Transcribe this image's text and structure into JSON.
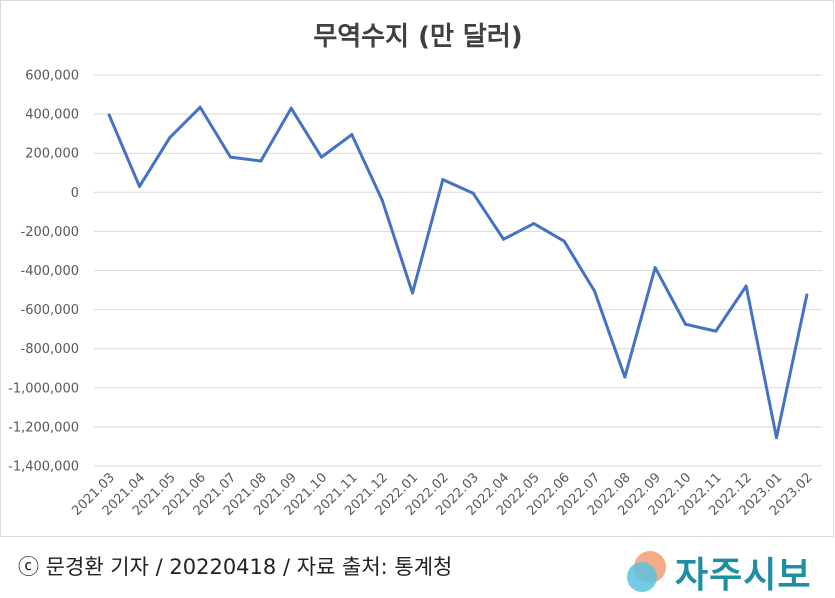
{
  "chart_data": {
    "type": "line",
    "title": "무역수지 (만 달러)",
    "xlabel": "",
    "ylabel": "",
    "categories": [
      "2021.03",
      "2021.04",
      "2021.05",
      "2021.06",
      "2021.07",
      "2021.08",
      "2021.09",
      "2021.10",
      "2021.11",
      "2021.12",
      "2022.01",
      "2022.02",
      "2022.03",
      "2022.04",
      "2022.05",
      "2022.06",
      "2022.07",
      "2022.08",
      "2022.09",
      "2022.10",
      "2022.11",
      "2022.12",
      "2023.01",
      "2023.02"
    ],
    "series": [
      {
        "values": [
          395000,
          30000,
          280000,
          435000,
          180000,
          160000,
          430000,
          180000,
          295000,
          -40000,
          -515000,
          65000,
          -5000,
          -240000,
          -160000,
          -250000,
          -505000,
          -945000,
          -385000,
          -675000,
          -710000,
          -480000,
          -1255000,
          -525000
        ]
      }
    ],
    "ylim": [
      -1400000,
      600000
    ],
    "yticks": [
      600000,
      400000,
      200000,
      0,
      -200000,
      -400000,
      -600000,
      -800000,
      -1000000,
      -1200000,
      -1400000
    ],
    "ytick_labels": [
      "600,000",
      "400,000",
      "200,000",
      "0",
      "-200,000",
      "-400,000",
      "-600,000",
      "-800,000",
      "-1,000,000",
      "-1,200,000",
      "-1,400,000"
    ],
    "grid": true,
    "line_color": "#4472c4",
    "grid_color": "#d9d9d9"
  },
  "footer": {
    "credit": "ⓒ 문경환 기자 / 20220418 / 자료 출처: 통계청",
    "logo_text": "자주시보",
    "logo_colors": {
      "orange": "#f4a27a",
      "blue": "#5bc2de",
      "text": "#1e8fa3"
    }
  }
}
